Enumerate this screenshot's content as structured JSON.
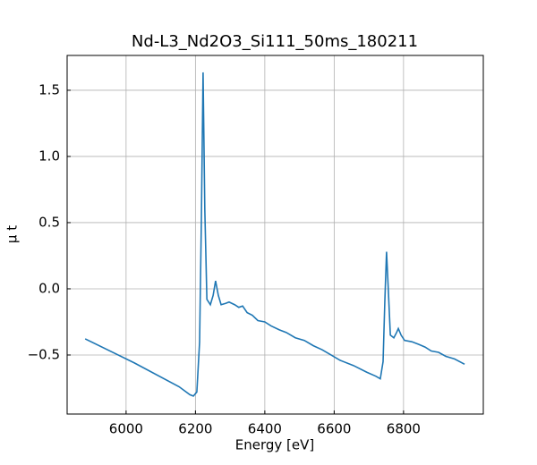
{
  "chart_data": {
    "type": "line",
    "title": "Nd-L3_Nd2O3_Si111_50ms_180211",
    "x_label": "Energy [eV]",
    "y_label": "μ t",
    "grid": true,
    "xlim": [
      5830,
      7030
    ],
    "ylim": [
      -0.946,
      1.763
    ],
    "xticks": [
      6000,
      6200,
      6400,
      6600,
      6800
    ],
    "yticks": [
      {
        "value": -0.5,
        "label": "−0.5"
      },
      {
        "value": 0,
        "label": "0.0"
      },
      0.5,
      {
        "value": 1,
        "label": "1.0"
      },
      1.5
    ],
    "x": [
      5882,
      6024,
      6153,
      6184,
      6194,
      6204,
      6212,
      6217,
      6222,
      6227,
      6233,
      6243,
      6251,
      6258,
      6266,
      6274,
      6287,
      6297,
      6313,
      6325,
      6336,
      6349,
      6364,
      6380,
      6400,
      6418,
      6442,
      6462,
      6488,
      6514,
      6540,
      6565,
      6591,
      6617,
      6656,
      6694,
      6720,
      6733,
      6741,
      6746,
      6751,
      6756,
      6762,
      6772,
      6780,
      6785,
      6793,
      6803,
      6824,
      6844,
      6862,
      6880,
      6901,
      6922,
      6947,
      6976
    ],
    "series": [
      {
        "color": "#1f77b4",
        "values": [
          -0.378,
          -0.56,
          -0.74,
          -0.8,
          -0.81,
          -0.78,
          -0.4,
          0.5,
          1.635,
          0.6,
          -0.08,
          -0.12,
          -0.05,
          0.06,
          -0.05,
          -0.12,
          -0.11,
          -0.1,
          -0.12,
          -0.14,
          -0.13,
          -0.18,
          -0.2,
          -0.24,
          -0.25,
          -0.28,
          -0.31,
          -0.33,
          -0.37,
          -0.39,
          -0.43,
          -0.46,
          -0.5,
          -0.54,
          -0.58,
          -0.63,
          -0.66,
          -0.68,
          -0.55,
          -0.1,
          0.28,
          0.0,
          -0.35,
          -0.37,
          -0.33,
          -0.3,
          -0.35,
          -0.39,
          -0.4,
          -0.42,
          -0.44,
          -0.47,
          -0.48,
          -0.51,
          -0.53,
          -0.57
        ]
      }
    ]
  }
}
